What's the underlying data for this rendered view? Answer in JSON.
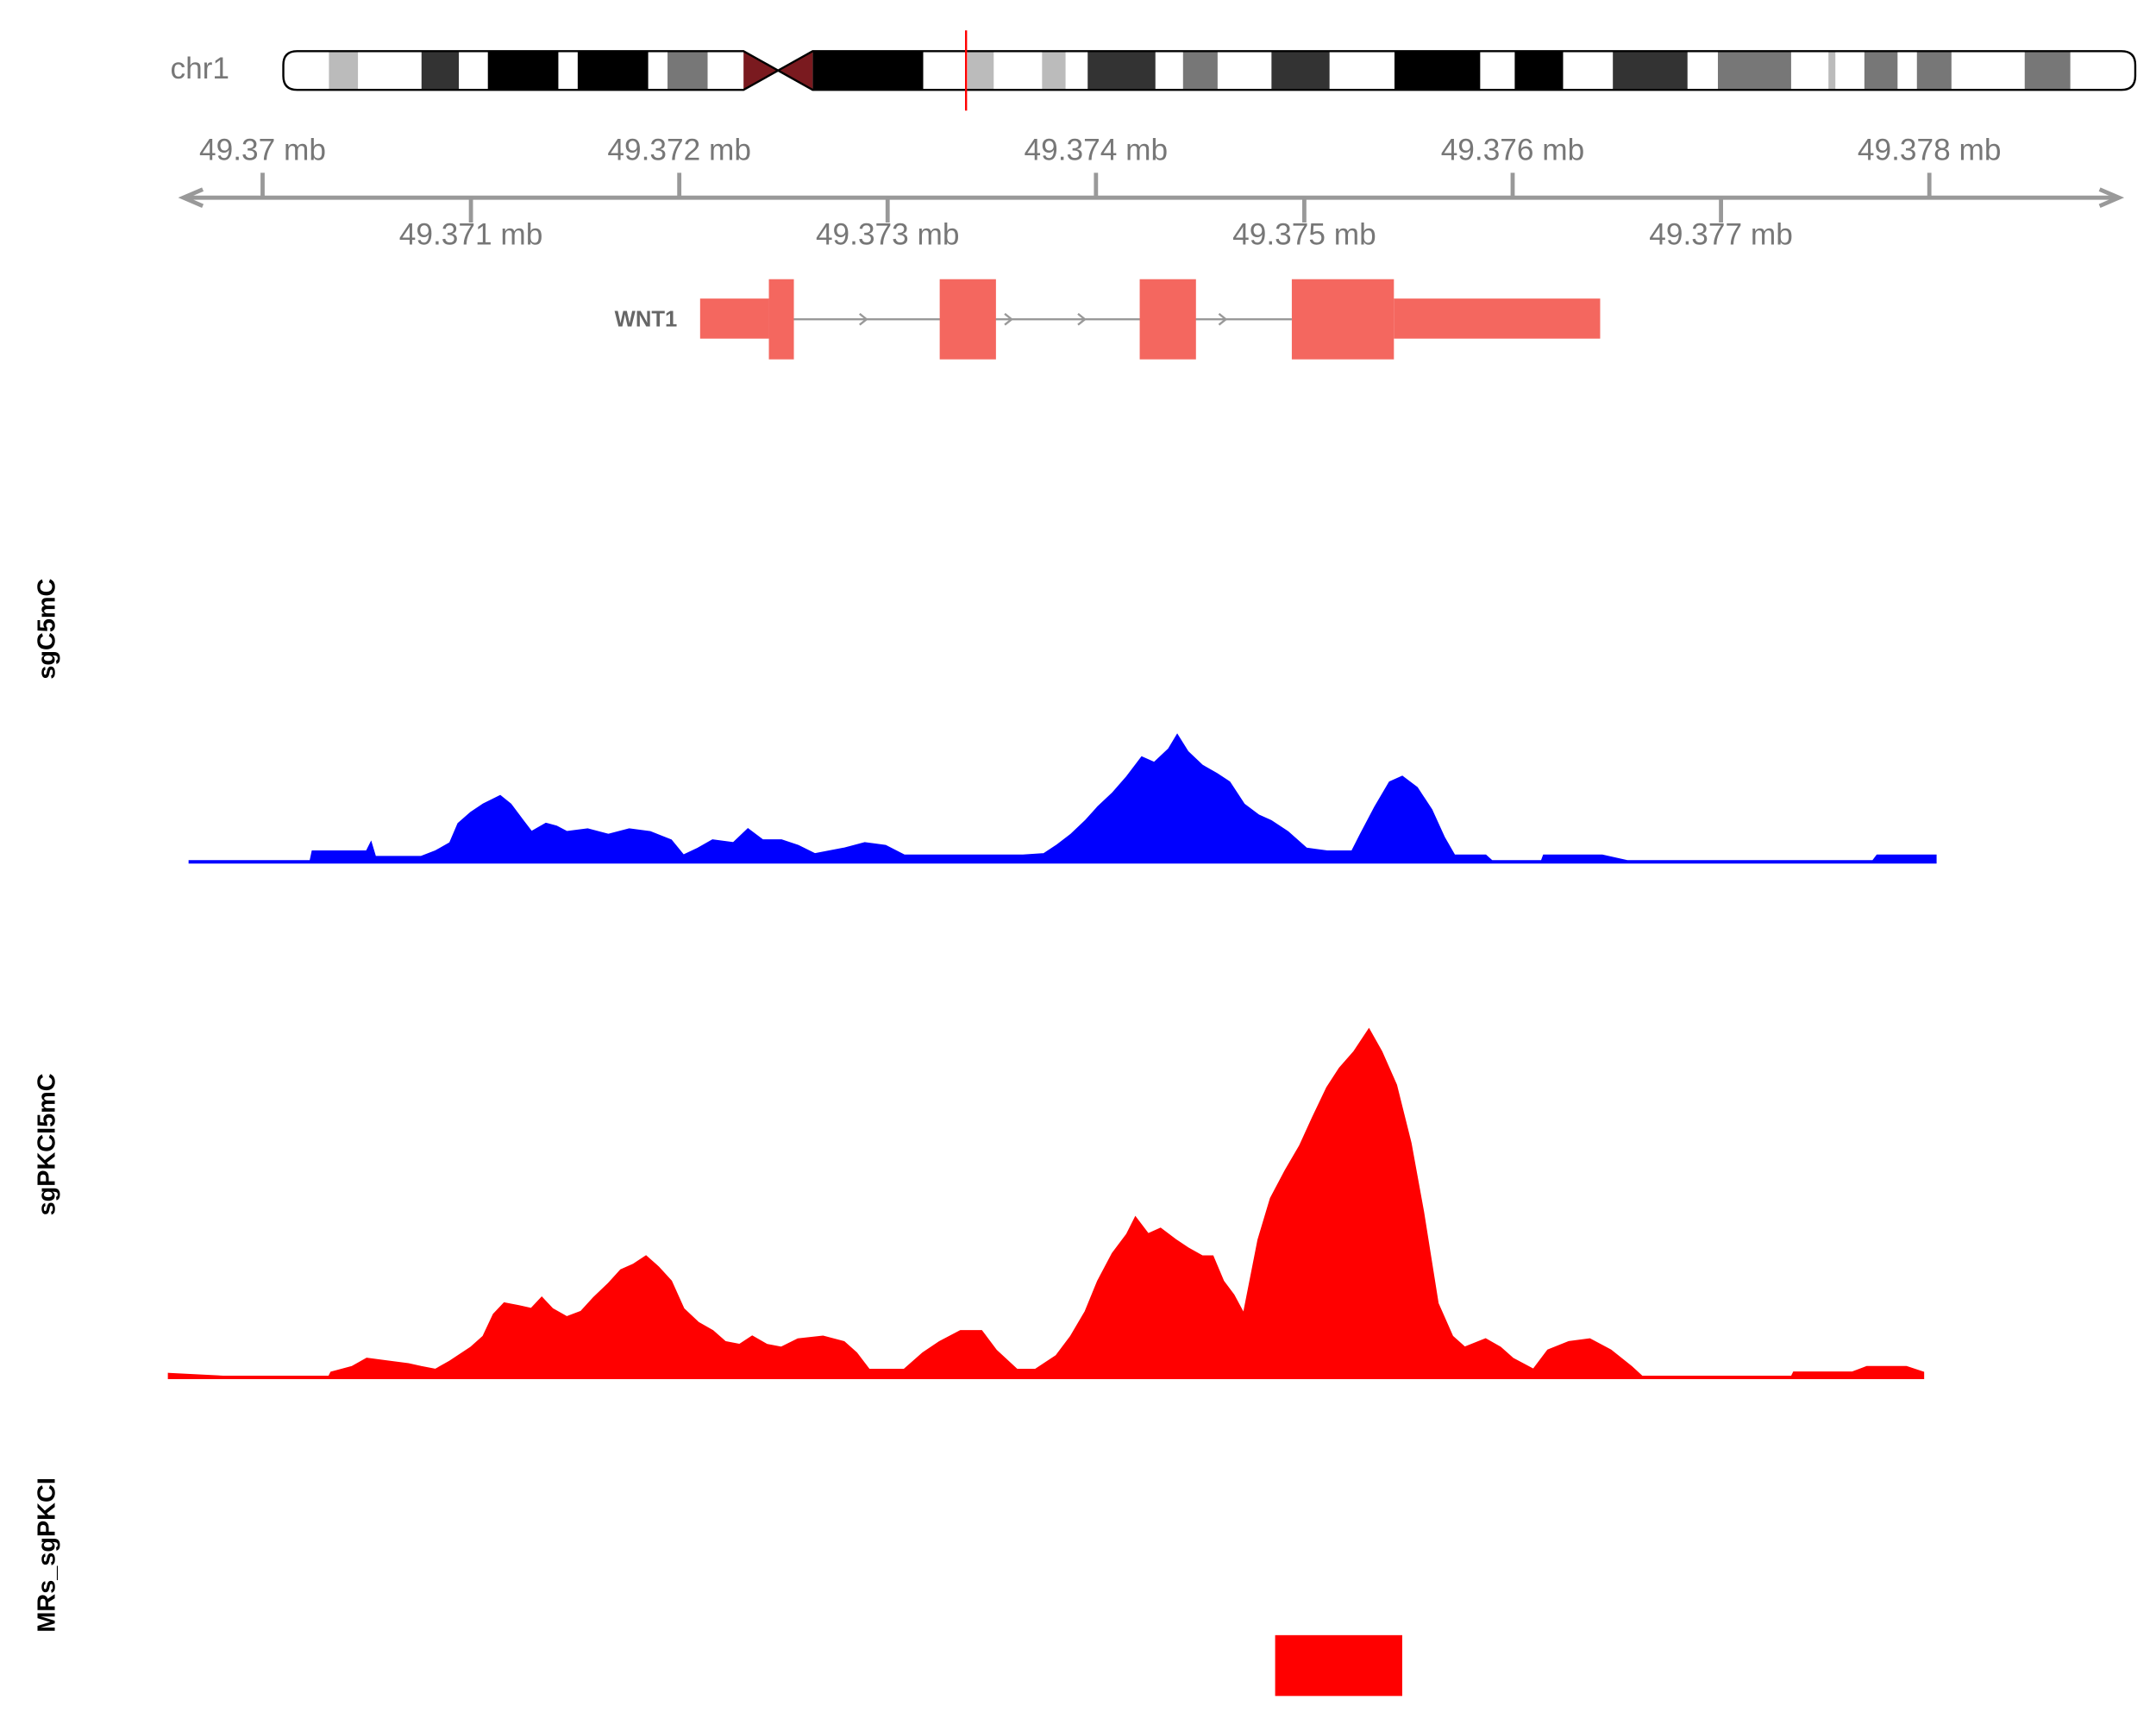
{
  "chart_data": {
    "type": "genome-tracks",
    "chromosome": "chr1",
    "xlim": [
      49.36962,
      49.37891
    ],
    "xticks": [
      {
        "value": 49.37,
        "label": "49.37 mb"
      },
      {
        "value": 49.371,
        "label": "49.371 mb"
      },
      {
        "value": 49.372,
        "label": "49.372 mb"
      },
      {
        "value": 49.373,
        "label": "49.373 mb"
      },
      {
        "value": 49.374,
        "label": "49.374 mb"
      },
      {
        "value": 49.375,
        "label": "49.375 mb"
      },
      {
        "value": 49.376,
        "label": "49.376 mb"
      },
      {
        "value": 49.377,
        "label": "49.377 mb"
      },
      {
        "value": 49.378,
        "label": "49.378 mb"
      }
    ],
    "gene": {
      "name": "WNT1",
      "color": "#f4675f",
      "utr": [
        [
          49.3721,
          49.37243
        ],
        [
          49.37543,
          49.37642
        ]
      ],
      "cds": [
        [
          49.37243,
          49.37255
        ],
        [
          49.37325,
          49.37352
        ],
        [
          49.37421,
          49.37448
        ],
        [
          49.37494,
          49.37543
        ]
      ]
    },
    "series": [
      {
        "name": "sgC5mC",
        "color": "#0000ff",
        "x": [
          49.36965,
          49.37023,
          49.37024,
          49.3705,
          49.37052,
          49.37054,
          49.37076,
          49.37083,
          49.3709,
          49.37094,
          49.371,
          49.37106,
          49.37114,
          49.37119,
          49.37125,
          49.37129,
          49.37136,
          49.37141,
          49.37146,
          49.37156,
          49.37166,
          49.37176,
          49.37186,
          49.37196,
          49.37202,
          49.37209,
          49.37216,
          49.37226,
          49.37233,
          49.3724,
          49.37249,
          49.37257,
          49.37265,
          49.37272,
          49.37279,
          49.37289,
          49.37299,
          49.37308,
          49.37315,
          49.37338,
          49.37365,
          49.37375,
          49.37381,
          49.37388,
          49.37395,
          49.37401,
          49.37408,
          49.37415,
          49.37422,
          49.37428,
          49.37435,
          49.37439,
          49.37444,
          49.37451,
          49.37458,
          49.37464,
          49.37471,
          49.37478,
          49.37484,
          49.37492,
          49.37501,
          49.37511,
          49.37523,
          49.37527,
          49.37534,
          49.37541,
          49.37547,
          49.37554,
          49.37561,
          49.37567,
          49.37572,
          49.37587,
          49.3759,
          49.37614,
          49.37615,
          49.37643,
          49.37655,
          49.37773,
          49.37775,
          49.37803
        ],
        "values": [
          1,
          1,
          8,
          8,
          14,
          4,
          4,
          8,
          14,
          28,
          36,
          42,
          48,
          42,
          30,
          22,
          28,
          26,
          22,
          24,
          20,
          24,
          22,
          16,
          5,
          10,
          16,
          14,
          24,
          16,
          16,
          12,
          6,
          8,
          10,
          14,
          12,
          5,
          5,
          5,
          5,
          6,
          12,
          20,
          30,
          40,
          50,
          62,
          76,
          72,
          82,
          92,
          80,
          70,
          64,
          58,
          42,
          34,
          30,
          22,
          10,
          8,
          8,
          20,
          40,
          58,
          62,
          54,
          38,
          18,
          5,
          5,
          1,
          1,
          5,
          5,
          1,
          1,
          5,
          5
        ]
      },
      {
        "name": "sgPKCI5mC",
        "color": "#ff0000",
        "x": [
          49.36955,
          49.36981,
          49.37032,
          49.37033,
          49.37043,
          49.3705,
          49.3706,
          49.3707,
          49.37076,
          49.37083,
          49.3709,
          49.371,
          49.37106,
          49.37111,
          49.37116,
          49.37123,
          49.37129,
          49.37134,
          49.37139,
          49.37146,
          49.37153,
          49.37159,
          49.37166,
          49.37172,
          49.37178,
          49.37184,
          49.3719,
          49.37196,
          49.37202,
          49.37209,
          49.37216,
          49.37222,
          49.37229,
          49.37235,
          49.37242,
          49.37249,
          49.37257,
          49.37269,
          49.37279,
          49.37285,
          49.37291,
          49.37308,
          49.37317,
          49.37325,
          49.37335,
          49.37345,
          49.37352,
          49.37362,
          49.37371,
          49.37381,
          49.37388,
          49.37395,
          49.37401,
          49.37408,
          49.37415,
          49.37419,
          49.37425,
          49.37431,
          49.37438,
          49.37444,
          49.37451,
          49.37456,
          49.37461,
          49.37466,
          49.37471,
          49.37478,
          49.37484,
          49.37491,
          49.37498,
          49.37504,
          49.37511,
          49.37517,
          49.37524,
          49.37531,
          49.37537,
          49.37544,
          49.37551,
          49.37557,
          49.37564,
          49.37571,
          49.37577,
          49.37587,
          49.37594,
          49.376,
          49.3761,
          49.37617,
          49.37627,
          49.37637,
          49.37647,
          49.37657,
          49.37662,
          49.37734,
          49.37735,
          49.37763,
          49.3777,
          49.37789,
          49.37797
        ],
        "values": [
          3,
          1,
          1,
          4,
          8,
          14,
          12,
          10,
          8,
          6,
          12,
          22,
          30,
          46,
          54,
          52,
          50,
          58,
          50,
          44,
          48,
          58,
          68,
          78,
          82,
          88,
          80,
          70,
          50,
          40,
          34,
          26,
          24,
          30,
          24,
          22,
          28,
          30,
          26,
          18,
          6,
          6,
          18,
          26,
          34,
          34,
          20,
          6,
          6,
          16,
          30,
          48,
          70,
          90,
          104,
          116,
          104,
          108,
          100,
          94,
          88,
          88,
          70,
          60,
          46,
          100,
          130,
          150,
          168,
          188,
          210,
          224,
          236,
          252,
          236,
          212,
          170,
          120,
          54,
          30,
          22,
          28,
          22,
          14,
          6,
          20,
          26,
          28,
          20,
          8,
          1,
          1,
          4,
          4,
          8,
          8,
          4
        ]
      }
    ],
    "regions": {
      "name": "MRs_sgPKCI",
      "color": "#ff0000",
      "start": 49.37486,
      "end": 49.37547
    }
  }
}
